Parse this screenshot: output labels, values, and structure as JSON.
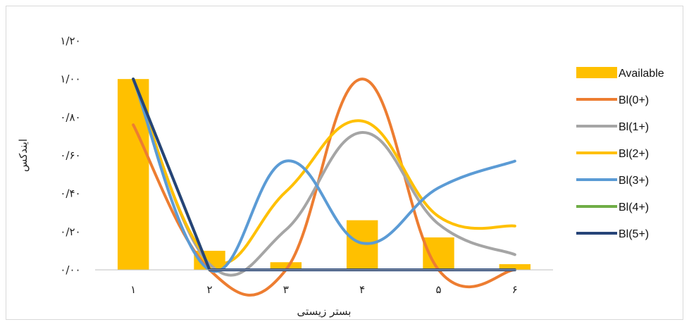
{
  "chart_data": {
    "type": "bar",
    "categories": [
      "۱",
      "۲",
      "۳",
      "۴",
      "۵",
      "۶"
    ],
    "xlabel": "بستر زیستی",
    "ylabel": "ایندکس",
    "ylim": [
      0,
      1.2
    ],
    "yticks": [
      {
        "value": 0,
        "label": "۰/۰۰"
      },
      {
        "value": 0.2,
        "label": "۰/۲۰"
      },
      {
        "value": 0.4,
        "label": "۰/۴۰"
      },
      {
        "value": 0.6,
        "label": "۰/۶۰"
      },
      {
        "value": 0.8,
        "label": "۰/۸۰"
      },
      {
        "value": 1.0,
        "label": "۱/۰۰"
      },
      {
        "value": 1.2,
        "label": "۱/۲۰"
      }
    ],
    "legend_position": "right",
    "bar_series": {
      "name": "Available",
      "color": "#FFC000",
      "values": [
        1.0,
        0.1,
        0.04,
        0.26,
        0.17,
        0.03
      ]
    },
    "line_series": [
      {
        "name": "Bl(0+)",
        "color": "#ED7D31",
        "values": [
          0.76,
          0.0,
          0.0,
          1.0,
          0.0,
          0.0
        ]
      },
      {
        "name": "Bl(1+)",
        "color": "#A5A5A5",
        "values": [
          1.0,
          0.03,
          0.21,
          0.72,
          0.24,
          0.08
        ]
      },
      {
        "name": "Bl(2+)",
        "color": "#FFC000",
        "values": [
          1.0,
          0.06,
          0.41,
          0.78,
          0.28,
          0.23
        ]
      },
      {
        "name": "Bl(3+)",
        "color": "#5B9BD5",
        "values": [
          1.0,
          0.0,
          0.57,
          0.14,
          0.43,
          0.57
        ]
      },
      {
        "name": "Bl(4+)",
        "color": "#70AD47",
        "values": [
          1.0,
          0.0,
          0.0,
          0.0,
          0.0,
          0.0
        ]
      },
      {
        "name": "Bl(5+)",
        "color": "#264478",
        "values": [
          1.0,
          0.0,
          0.0,
          0.0,
          0.0,
          0.0
        ]
      }
    ]
  }
}
